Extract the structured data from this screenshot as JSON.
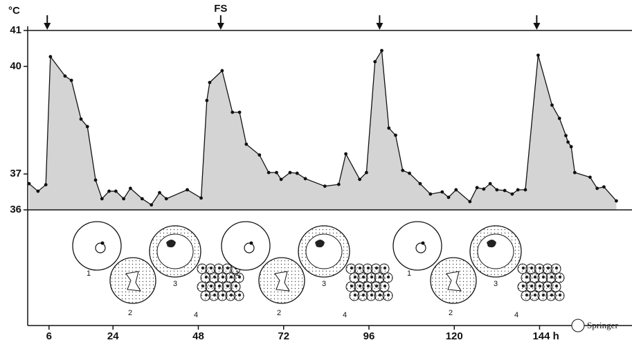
{
  "chart_data": {
    "type": "area",
    "ylabel": "°C",
    "x": [
      0.4,
      2.9,
      5.1,
      6.4,
      10.5,
      12.3,
      15,
      16.8,
      19.1,
      20.9,
      22.9,
      24.8,
      27,
      28.9,
      32.2,
      34.8,
      37.1,
      39,
      44.9,
      48.8,
      50.4,
      51.2,
      54.7,
      57.6,
      59.6,
      61.5,
      65.2,
      67.8,
      70,
      71.3,
      73.8,
      75.8,
      78.1,
      83.6,
      87.5,
      89.5,
      93.4,
      95.3,
      97.7,
      99.6,
      101.6,
      103.5,
      105.5,
      107.4,
      110.4,
      113.3,
      116.6,
      118.4,
      120.5,
      124.4,
      126.4,
      128.3,
      130.1,
      132,
      134.2,
      136.3,
      137.9,
      140,
      143.6,
      147.5,
      149.6,
      151.4,
      152,
      152.9,
      153.9,
      158.2,
      160.2,
      162.1,
      165.6
    ],
    "values": [
      36.73,
      36.52,
      36.7,
      40.27,
      39.73,
      39.61,
      38.53,
      38.32,
      36.83,
      36.31,
      36.52,
      36.52,
      36.31,
      36.6,
      36.31,
      36.14,
      36.48,
      36.31,
      36.56,
      36.33,
      39.05,
      39.55,
      39.88,
      38.72,
      38.72,
      37.83,
      37.53,
      37.04,
      37.04,
      36.85,
      37.04,
      37.02,
      36.87,
      36.66,
      36.71,
      37.56,
      36.85,
      37.04,
      40.13,
      40.44,
      38.28,
      38.08,
      37.1,
      37.02,
      36.73,
      36.44,
      36.5,
      36.35,
      36.56,
      36.23,
      36.62,
      36.58,
      36.73,
      36.56,
      36.54,
      36.44,
      36.56,
      36.56,
      40.31,
      38.92,
      38.55,
      38.07,
      37.89,
      37.76,
      37.04,
      36.91,
      36.6,
      36.64,
      36.25
    ],
    "color": "#d4d4d4",
    "line_color": "#111111",
    "xlim": [
      0,
      170
    ],
    "ylim": [
      36,
      41
    ],
    "xticks": [
      6,
      24,
      48,
      72,
      96,
      120,
      {
        "value": 144,
        "label": "144 h"
      }
    ],
    "yticks": [
      36,
      37,
      40,
      41
    ],
    "markers": [
      {
        "x": 5.5
      },
      {
        "x": 54.3,
        "label": "FS"
      },
      {
        "x": 99
      },
      {
        "x": 143.2
      }
    ],
    "stage_labels": [
      "1",
      "2",
      "3",
      "4"
    ],
    "publisher": "Springer"
  }
}
